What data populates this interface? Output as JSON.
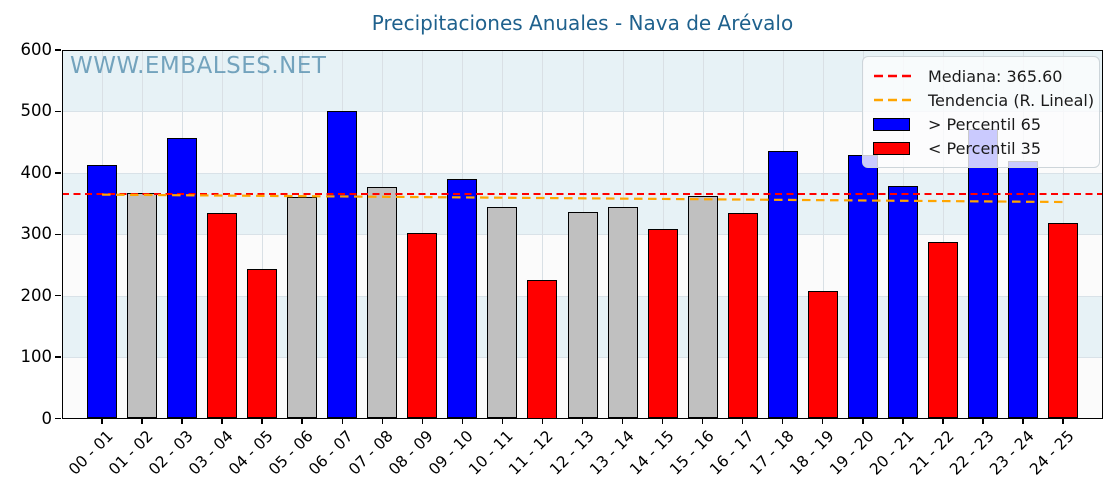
{
  "title": "Precipitaciones Anuales - Nava de Arévalo",
  "watermark": "WWW.EMBALSES.NET",
  "legend": {
    "median_label": "Mediana: 365.60",
    "trend_label": "Tendencia (R. Lineal)",
    "p65_label": "> Percentil 65",
    "p35_label": "< Percentil 35"
  },
  "colors": {
    "above_p65": "#0000ff",
    "below_p35": "#ff0000",
    "mid_gray": "#c0c0c0",
    "median_line": "#ff0000",
    "trend_line": "#ffa500",
    "title": "#1f618d",
    "watermark": "#4d89aa",
    "band_blue": "#e7f2f6",
    "band_white": "#fbfbfb"
  },
  "chart_data": {
    "type": "bar",
    "title": "Precipitaciones Anuales - Nava de Arévalo",
    "xlabel": "",
    "ylabel": "",
    "ylim": [
      0,
      600
    ],
    "yticks": [
      0,
      100,
      200,
      300,
      400,
      500,
      600
    ],
    "grid": true,
    "legend_position": "upper right",
    "categories": [
      "00 - 01",
      "01 - 02",
      "02 - 03",
      "03 - 04",
      "04 - 05",
      "05 - 06",
      "06 - 07",
      "07 - 08",
      "08 - 09",
      "09 - 10",
      "10 - 11",
      "11 - 12",
      "12 - 13",
      "13 - 14",
      "14 - 15",
      "15 - 16",
      "16 - 17",
      "17 - 18",
      "18 - 19",
      "19 - 20",
      "20 - 21",
      "21 - 22",
      "22 - 23",
      "23 - 24",
      "24 - 25"
    ],
    "values": [
      413,
      367,
      457,
      334,
      243,
      360,
      501,
      377,
      302,
      390,
      344,
      225,
      337,
      345,
      309,
      362,
      335,
      436,
      207,
      429,
      378,
      287,
      471,
      420,
      318
    ],
    "classes": [
      "above",
      "mid",
      "above",
      "below",
      "below",
      "mid",
      "above",
      "mid",
      "below",
      "above",
      "mid",
      "below",
      "mid",
      "mid",
      "below",
      "mid",
      "below",
      "above",
      "below",
      "above",
      "above",
      "below",
      "above",
      "above",
      "below"
    ],
    "median": 365.6,
    "trend_linear": {
      "start_value": 364.5,
      "end_value": 352.5
    }
  }
}
